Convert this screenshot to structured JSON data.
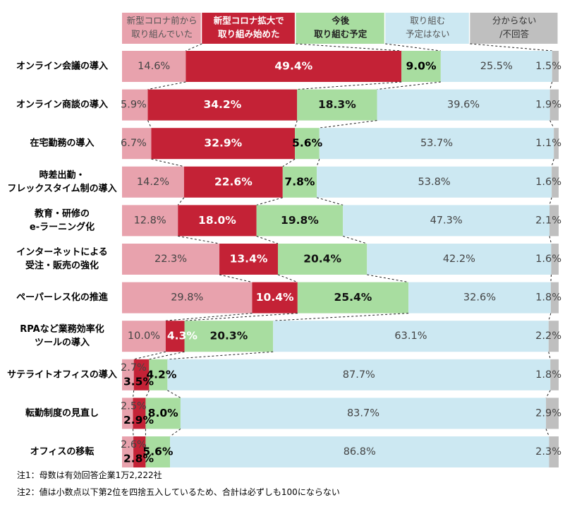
{
  "chart_data": {
    "type": "bar",
    "orientation": "horizontal",
    "stacked": true,
    "percent_stacked": true,
    "title": "",
    "xlabel": "",
    "ylabel": "",
    "legend_position": "top",
    "series": [
      {
        "name": "新型コロナ前から取り組んでいた",
        "label_lines": [
          "新型コロナ前から",
          "取り組んでいた"
        ],
        "color": "#E8A2AD",
        "header_text_color": "#555555",
        "label_color": "#444444",
        "label_bold": false,
        "values": [
          14.6,
          5.9,
          6.7,
          14.2,
          12.8,
          22.3,
          29.8,
          10.0,
          2.7,
          2.5,
          2.6
        ]
      },
      {
        "name": "新型コロナ拡大で取り組み始めた",
        "label_lines": [
          "新型コロナ拡大で",
          "取り組み始めた"
        ],
        "color": "#C42236",
        "header_text_color": "#ffffff",
        "label_color": "#ffffff",
        "label_bold": true,
        "values": [
          49.4,
          34.2,
          32.9,
          22.6,
          18.0,
          13.4,
          10.4,
          4.3,
          3.5,
          2.9,
          2.8
        ]
      },
      {
        "name": "今後取り組む予定",
        "label_lines": [
          "今後",
          "取り組む予定"
        ],
        "color": "#A8DDA0",
        "header_text_color": "#222222",
        "label_color": "#111111",
        "label_bold": true,
        "values": [
          9.0,
          18.3,
          5.6,
          7.8,
          19.8,
          20.4,
          25.4,
          20.3,
          4.2,
          8.0,
          5.6
        ]
      },
      {
        "name": "取り組む予定はない",
        "label_lines": [
          "取り組む",
          "予定はない"
        ],
        "color": "#CCE8F2",
        "header_text_color": "#555555",
        "label_color": "#444444",
        "label_bold": false,
        "values": [
          25.5,
          39.6,
          53.7,
          53.8,
          47.3,
          42.2,
          32.6,
          63.1,
          87.7,
          83.7,
          86.8
        ]
      },
      {
        "name": "分からない/不回答",
        "label_lines": [
          "分からない",
          "/不回答"
        ],
        "color": "#BFBFBF",
        "header_text_color": "#333333",
        "label_color": "#444444",
        "label_bold": false,
        "values": [
          1.5,
          1.9,
          1.1,
          1.6,
          2.1,
          1.6,
          1.8,
          2.2,
          1.8,
          2.9,
          2.3
        ]
      }
    ],
    "categories": [
      {
        "name": "オンライン会議の導入",
        "lines": [
          "オンライン会議の導入"
        ]
      },
      {
        "name": "オンライン商談の導入",
        "lines": [
          "オンライン商談の導入"
        ]
      },
      {
        "name": "在宅勤務の導入",
        "lines": [
          "在宅勤務の導入"
        ]
      },
      {
        "name": "時差出勤・フレックスタイム制の導入",
        "lines": [
          "時差出勤・",
          "フレックスタイム制の導入"
        ]
      },
      {
        "name": "教育・研修のe-ラーニング化",
        "lines": [
          "教育・研修の",
          "e-ラーニング化"
        ]
      },
      {
        "name": "インターネットによる受注・販売の強化",
        "lines": [
          "インターネットによる",
          "受注・販売の強化"
        ]
      },
      {
        "name": "ペーパーレス化の推進",
        "lines": [
          "ペーパーレス化の推進"
        ]
      },
      {
        "name": "RPAなど業務効率化ツールの導入",
        "lines": [
          "RPAなど業務効率化",
          "ツールの導入"
        ]
      },
      {
        "name": "サテライトオフィスの導入",
        "lines": [
          "サテライトオフィスの導入"
        ]
      },
      {
        "name": "転勤制度の見直し",
        "lines": [
          "転勤制度の見直し"
        ]
      },
      {
        "name": "オフィスの移転",
        "lines": [
          "オフィスの移転"
        ]
      }
    ],
    "value_format": "{v}%",
    "xlim": [
      0,
      100
    ],
    "grid": false
  },
  "notes": [
    "注1：母数は有効回答企業1万2,222社",
    "注2：値は小数点以下第2位を四捨五入しているため、合計は必ずしも100にならない"
  ]
}
